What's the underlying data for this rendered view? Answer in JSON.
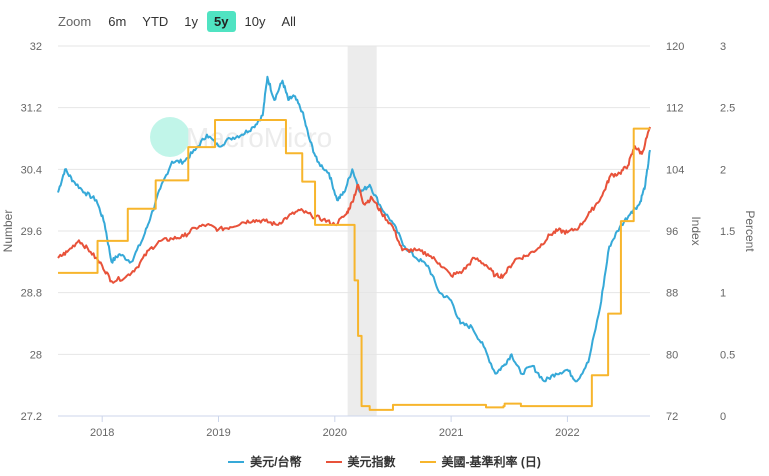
{
  "zoom": {
    "label": "Zoom",
    "buttons": [
      "6m",
      "YTD",
      "1y",
      "5y",
      "10y",
      "All"
    ],
    "active": "5y"
  },
  "watermark": "MacroMicro",
  "chart_data": {
    "type": "line",
    "x_range": [
      2017.62,
      2022.71
    ],
    "x_ticks": [
      "2018",
      "2019",
      "2020",
      "2021",
      "2022"
    ],
    "shaded_band": {
      "from": 2020.11,
      "to": 2020.36
    },
    "axes": {
      "left": {
        "label": "Number",
        "range": [
          27.2,
          32
        ],
        "ticks": [
          "32",
          "31.2",
          "30.4",
          "29.6",
          "28.8",
          "28",
          "27.2"
        ]
      },
      "right1": {
        "label": "Index",
        "range": [
          72,
          120
        ],
        "ticks": [
          "120",
          "112",
          "104",
          "96",
          "88",
          "80",
          "72"
        ]
      },
      "right2": {
        "label": "Percent",
        "range": [
          0,
          3
        ],
        "ticks": [
          "3",
          "2.5",
          "2",
          "1.5",
          "1",
          "0.5",
          "0"
        ]
      }
    },
    "legend": "bottom-center",
    "grid": true,
    "series": [
      {
        "name": "美元/台幣",
        "axis": "left",
        "color": "#36a9d8",
        "step": false,
        "points": [
          [
            2017.62,
            30.1
          ],
          [
            2017.68,
            30.4
          ],
          [
            2017.75,
            30.25
          ],
          [
            2017.85,
            30.1
          ],
          [
            2017.95,
            30.0
          ],
          [
            2018.02,
            29.7
          ],
          [
            2018.08,
            29.2
          ],
          [
            2018.15,
            29.3
          ],
          [
            2018.25,
            29.2
          ],
          [
            2018.35,
            29.5
          ],
          [
            2018.42,
            29.8
          ],
          [
            2018.5,
            30.15
          ],
          [
            2018.6,
            30.5
          ],
          [
            2018.7,
            30.5
          ],
          [
            2018.8,
            30.65
          ],
          [
            2018.9,
            30.85
          ],
          [
            2019.0,
            30.7
          ],
          [
            2019.1,
            30.8
          ],
          [
            2019.2,
            30.85
          ],
          [
            2019.3,
            30.95
          ],
          [
            2019.38,
            31.1
          ],
          [
            2019.42,
            31.6
          ],
          [
            2019.48,
            31.3
          ],
          [
            2019.55,
            31.55
          ],
          [
            2019.6,
            31.3
          ],
          [
            2019.65,
            31.35
          ],
          [
            2019.72,
            31.15
          ],
          [
            2019.78,
            30.8
          ],
          [
            2019.85,
            30.5
          ],
          [
            2019.95,
            30.35
          ],
          [
            2020.02,
            30.0
          ],
          [
            2020.08,
            30.1
          ],
          [
            2020.15,
            30.4
          ],
          [
            2020.22,
            30.1
          ],
          [
            2020.3,
            30.2
          ],
          [
            2020.4,
            29.9
          ],
          [
            2020.5,
            29.7
          ],
          [
            2020.6,
            29.4
          ],
          [
            2020.7,
            29.25
          ],
          [
            2020.8,
            29.15
          ],
          [
            2020.9,
            28.8
          ],
          [
            2021.0,
            28.7
          ],
          [
            2021.08,
            28.4
          ],
          [
            2021.18,
            28.35
          ],
          [
            2021.28,
            28.1
          ],
          [
            2021.38,
            27.75
          ],
          [
            2021.45,
            27.85
          ],
          [
            2021.52,
            28.0
          ],
          [
            2021.6,
            27.75
          ],
          [
            2021.7,
            27.85
          ],
          [
            2021.8,
            27.65
          ],
          [
            2021.9,
            27.75
          ],
          [
            2022.0,
            27.8
          ],
          [
            2022.08,
            27.65
          ],
          [
            2022.18,
            27.9
          ],
          [
            2022.28,
            28.6
          ],
          [
            2022.36,
            29.4
          ],
          [
            2022.45,
            29.65
          ],
          [
            2022.55,
            29.85
          ],
          [
            2022.62,
            29.95
          ],
          [
            2022.67,
            30.2
          ],
          [
            2022.71,
            30.65
          ]
        ]
      },
      {
        "name": "美元指數",
        "axis": "right1",
        "color": "#e8523a",
        "step": false,
        "points": [
          [
            2017.62,
            92.5
          ],
          [
            2017.7,
            93.3
          ],
          [
            2017.8,
            94.8
          ],
          [
            2017.9,
            93.3
          ],
          [
            2018.0,
            91.5
          ],
          [
            2018.08,
            89.5
          ],
          [
            2018.2,
            90.0
          ],
          [
            2018.3,
            91.3
          ],
          [
            2018.4,
            93.5
          ],
          [
            2018.5,
            94.7
          ],
          [
            2018.6,
            95.0
          ],
          [
            2018.7,
            95.3
          ],
          [
            2018.8,
            96.4
          ],
          [
            2018.9,
            96.8
          ],
          [
            2019.0,
            96.2
          ],
          [
            2019.1,
            96.5
          ],
          [
            2019.2,
            97.1
          ],
          [
            2019.3,
            97.4
          ],
          [
            2019.4,
            97.3
          ],
          [
            2019.5,
            96.8
          ],
          [
            2019.6,
            97.9
          ],
          [
            2019.7,
            98.7
          ],
          [
            2019.8,
            98.0
          ],
          [
            2019.9,
            97.5
          ],
          [
            2020.0,
            96.8
          ],
          [
            2020.1,
            98.2
          ],
          [
            2020.15,
            99.8
          ],
          [
            2020.2,
            102.0
          ],
          [
            2020.25,
            99.5
          ],
          [
            2020.32,
            100.3
          ],
          [
            2020.4,
            98.4
          ],
          [
            2020.5,
            96.5
          ],
          [
            2020.58,
            93.5
          ],
          [
            2020.7,
            93.5
          ],
          [
            2020.8,
            93.0
          ],
          [
            2020.9,
            91.8
          ],
          [
            2021.0,
            90.2
          ],
          [
            2021.1,
            90.8
          ],
          [
            2021.2,
            92.5
          ],
          [
            2021.3,
            91.6
          ],
          [
            2021.38,
            90.2
          ],
          [
            2021.45,
            90.2
          ],
          [
            2021.55,
            92.3
          ],
          [
            2021.65,
            92.8
          ],
          [
            2021.75,
            93.8
          ],
          [
            2021.85,
            95.5
          ],
          [
            2021.92,
            96.1
          ],
          [
            2022.0,
            95.8
          ],
          [
            2022.1,
            96.5
          ],
          [
            2022.2,
            98.5
          ],
          [
            2022.3,
            100.6
          ],
          [
            2022.37,
            103.2
          ],
          [
            2022.45,
            103.5
          ],
          [
            2022.52,
            104.5
          ],
          [
            2022.58,
            107.0
          ],
          [
            2022.64,
            106.0
          ],
          [
            2022.71,
            109.5
          ]
        ]
      },
      {
        "name": "美國-基準利率 (日)",
        "axis": "right2",
        "color": "#f7b52c",
        "step": true,
        "points": [
          [
            2017.62,
            1.16
          ],
          [
            2017.96,
            1.42
          ],
          [
            2018.22,
            1.68
          ],
          [
            2018.46,
            1.91
          ],
          [
            2018.74,
            2.18
          ],
          [
            2018.97,
            2.4
          ],
          [
            2019.58,
            2.13
          ],
          [
            2019.72,
            1.9
          ],
          [
            2019.83,
            1.55
          ],
          [
            2020.17,
            1.1
          ],
          [
            2020.2,
            0.65
          ],
          [
            2020.23,
            0.08
          ],
          [
            2020.3,
            0.05
          ],
          [
            2020.5,
            0.09
          ],
          [
            2020.8,
            0.09
          ],
          [
            2021.0,
            0.09
          ],
          [
            2021.3,
            0.07
          ],
          [
            2021.45,
            0.08
          ],
          [
            2021.46,
            0.1
          ],
          [
            2021.6,
            0.08
          ],
          [
            2022.0,
            0.08
          ],
          [
            2022.21,
            0.33
          ],
          [
            2022.35,
            0.83
          ],
          [
            2022.46,
            1.58
          ],
          [
            2022.57,
            2.33
          ],
          [
            2022.71,
            2.33
          ]
        ]
      }
    ]
  }
}
